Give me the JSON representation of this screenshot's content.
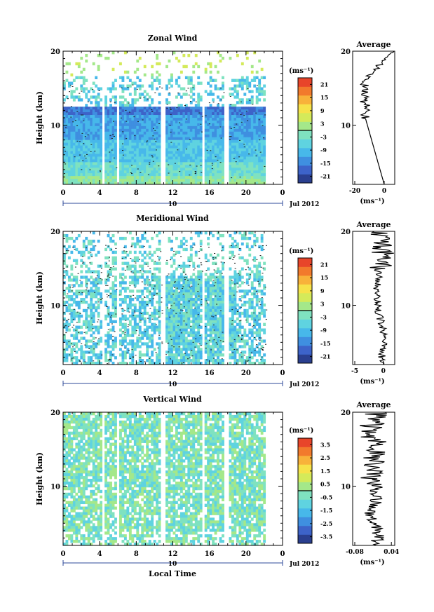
{
  "figure": {
    "date_label": "Jul 2012",
    "xaxis_label": "Local Time",
    "day_label": "10"
  },
  "chart_data": [
    {
      "type": "heatmap",
      "title": "Zonal Wind",
      "ylabel": "Height (km)",
      "xticks": [
        "0",
        "4",
        "8",
        "12",
        "16",
        "20",
        "0"
      ],
      "yticks": [
        "10",
        "20"
      ],
      "ylim": [
        2,
        20
      ],
      "xlim": [
        0,
        24
      ],
      "colorbar": {
        "unit_label": "(ms⁻¹)",
        "ticks": [
          "21",
          "15",
          "9",
          "3",
          "-3",
          "-9",
          "-15",
          "-21"
        ]
      },
      "average": {
        "title": "Average",
        "xticks": [
          "-20",
          "0"
        ],
        "yticks": [
          "10",
          "20"
        ],
        "xlabel": "(ms⁻¹)"
      }
    },
    {
      "type": "heatmap",
      "title": "Meridional Wind",
      "ylabel": "Height (km)",
      "xticks": [
        "0",
        "4",
        "8",
        "12",
        "16",
        "20",
        "0"
      ],
      "yticks": [
        "10",
        "20"
      ],
      "ylim": [
        2,
        20
      ],
      "xlim": [
        0,
        24
      ],
      "colorbar": {
        "unit_label": "(ms⁻¹)",
        "ticks": [
          "21",
          "15",
          "9",
          "3",
          "-3",
          "-9",
          "-15",
          "-21"
        ]
      },
      "average": {
        "title": "Average",
        "xticks": [
          "-5",
          "0"
        ],
        "yticks": [
          "10",
          "20"
        ],
        "xlabel": "(ms⁻¹)"
      }
    },
    {
      "type": "heatmap",
      "title": "Vertical Wind",
      "ylabel": "Height (km)",
      "xticks": [
        "0",
        "4",
        "8",
        "12",
        "16",
        "20",
        "0"
      ],
      "yticks": [
        "10",
        "20"
      ],
      "ylim": [
        2,
        20
      ],
      "xlim": [
        0,
        24
      ],
      "colorbar": {
        "unit_label": "(ms⁻¹)",
        "ticks": [
          "3.5",
          "2.5",
          "1.5",
          "0.5",
          "-0.5",
          "-1.5",
          "-2.5",
          "-3.5"
        ]
      },
      "average": {
        "title": "Average",
        "xticks": [
          "-0.08",
          "0.04"
        ],
        "yticks": [
          "10",
          "20"
        ],
        "xlabel": "(ms⁻¹)"
      }
    }
  ],
  "colors": {
    "palette": [
      "#2a3f8f",
      "#3d63c9",
      "#3f8fe0",
      "#47b8ea",
      "#5fd3e0",
      "#7fe2c0",
      "#a4e88a",
      "#d4ea5a",
      "#f6e24a",
      "#f8b23a",
      "#f27a2c",
      "#e8452a"
    ],
    "axis": "#000000",
    "date_tick": "#2d4a9a"
  }
}
